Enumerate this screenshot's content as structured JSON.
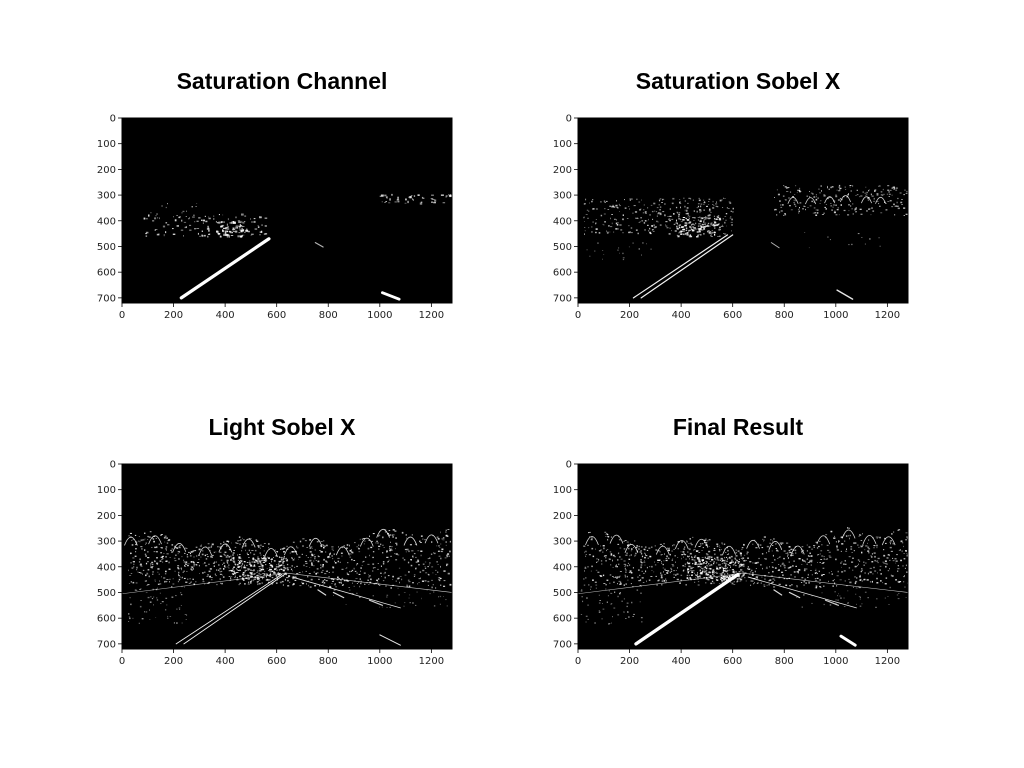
{
  "colors": {
    "background": "#ffffff",
    "image_background": "#000000",
    "edge_pixels": "#ffffff"
  },
  "panels": [
    {
      "id": "saturation-channel",
      "title": "Saturation Channel",
      "x_ticks": [
        "0",
        "200",
        "400",
        "600",
        "800",
        "1000",
        "1200"
      ],
      "y_ticks": [
        "0",
        "100",
        "200",
        "300",
        "400",
        "500",
        "600",
        "700"
      ],
      "content": "saturation"
    },
    {
      "id": "saturation-sobel-x",
      "title": "Saturation Sobel X",
      "x_ticks": [
        "0",
        "200",
        "400",
        "600",
        "800",
        "1000",
        "1200"
      ],
      "y_ticks": [
        "0",
        "100",
        "200",
        "300",
        "400",
        "500",
        "600",
        "700"
      ],
      "content": "sat-sobel"
    },
    {
      "id": "light-sobel-x",
      "title": "Light Sobel X",
      "x_ticks": [
        "0",
        "200",
        "400",
        "600",
        "800",
        "1000",
        "1200"
      ],
      "y_ticks": [
        "0",
        "100",
        "200",
        "300",
        "400",
        "500",
        "600",
        "700"
      ],
      "content": "light-sobel"
    },
    {
      "id": "final-result",
      "title": "Final Result",
      "x_ticks": [
        "0",
        "200",
        "400",
        "600",
        "800",
        "1000",
        "1200"
      ],
      "y_ticks": [
        "0",
        "100",
        "200",
        "300",
        "400",
        "500",
        "600",
        "700"
      ],
      "content": "final"
    }
  ]
}
